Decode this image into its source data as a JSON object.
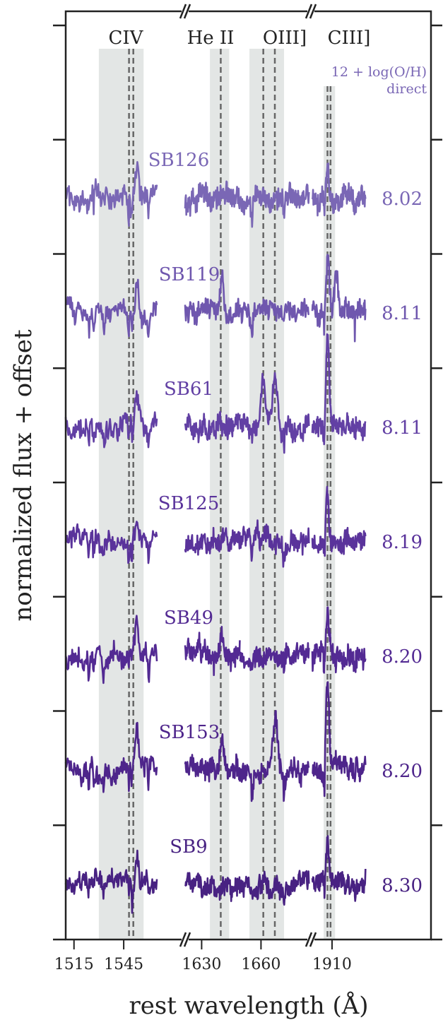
{
  "chart_data": {
    "type": "line",
    "title": "",
    "xlabel": "rest wavelength (Å)",
    "ylabel": "normalized flux + offset",
    "x_segments": [
      {
        "range": [
          1510,
          1565
        ],
        "ticks": [
          1515,
          1545
        ]
      },
      {
        "range": [
          1621,
          1651
        ],
        "ticks": [
          1630
        ]
      },
      {
        "range": [
          1651,
          1681
        ],
        "ticks": [
          1660
        ]
      },
      {
        "range": [
          1897,
          1937
        ],
        "ticks": [
          1910
        ]
      }
    ],
    "line_labels": [
      "CIV",
      "He II",
      "OIII]",
      "CIII]"
    ],
    "lines": [
      {
        "name": "CIV",
        "band": [
          1530,
          1557
        ],
        "dashed": [
          1548.2,
          1550.8
        ]
      },
      {
        "name": "He II",
        "band": [
          1634.5,
          1645
        ],
        "dashed": [
          1640.4
        ]
      },
      {
        "name": "OIII]",
        "band": [
          1655,
          1670
        ],
        "dashed": [
          1661,
          1666
        ]
      },
      {
        "name": "CIII]",
        "band": [
          1904.5,
          1912
        ],
        "dashed": [
          1907,
          1909
        ]
      }
    ],
    "metallicity_header": "12 + log(O/H)",
    "metallicity_subheader": "direct",
    "series": [
      {
        "name": "SB126",
        "metallicity": "8.02",
        "color": "#7a67b5",
        "y_offset": 7,
        "seed": 11,
        "peaks": [
          [
            1553,
            0.35
          ],
          [
            1907,
            0.3
          ]
        ]
      },
      {
        "name": "SB119",
        "metallicity": "8.11",
        "color": "#6f57ae",
        "y_offset": 6,
        "seed": 23,
        "peaks": [
          [
            1553,
            0.4
          ],
          [
            1641,
            0.35
          ],
          [
            1907,
            0.6
          ],
          [
            1913,
            0.45
          ]
        ]
      },
      {
        "name": "SB61",
        "metallicity": "8.11",
        "color": "#6240a4",
        "y_offset": 5,
        "seed": 37,
        "peaks": [
          [
            1553,
            0.4
          ],
          [
            1661,
            0.5
          ],
          [
            1666,
            0.6
          ],
          [
            1907,
            1.0
          ]
        ]
      },
      {
        "name": "SB125",
        "metallicity": "8.19",
        "color": "#5a339b",
        "y_offset": 4,
        "seed": 41,
        "peaks": [
          [
            1553,
            0.3
          ],
          [
            1907,
            0.6
          ]
        ]
      },
      {
        "name": "SB49",
        "metallicity": "8.20",
        "color": "#532a93",
        "y_offset": 3,
        "seed": 53,
        "peaks": [
          [
            1553,
            0.4
          ],
          [
            1641,
            0.3
          ],
          [
            1907,
            0.4
          ]
        ]
      },
      {
        "name": "SB153",
        "metallicity": "8.20",
        "color": "#4e258b",
        "y_offset": 2,
        "seed": 67,
        "peaks": [
          [
            1553,
            0.4
          ],
          [
            1641,
            0.35
          ],
          [
            1666,
            0.6
          ],
          [
            1907,
            1.0
          ]
        ]
      },
      {
        "name": "SB9",
        "metallicity": "8.30",
        "color": "#482282",
        "y_offset": 1,
        "seed": 79,
        "peaks": [
          [
            1553,
            0.3
          ],
          [
            1907,
            0.5
          ]
        ]
      }
    ],
    "y_tick_count": 9,
    "grid": false
  }
}
